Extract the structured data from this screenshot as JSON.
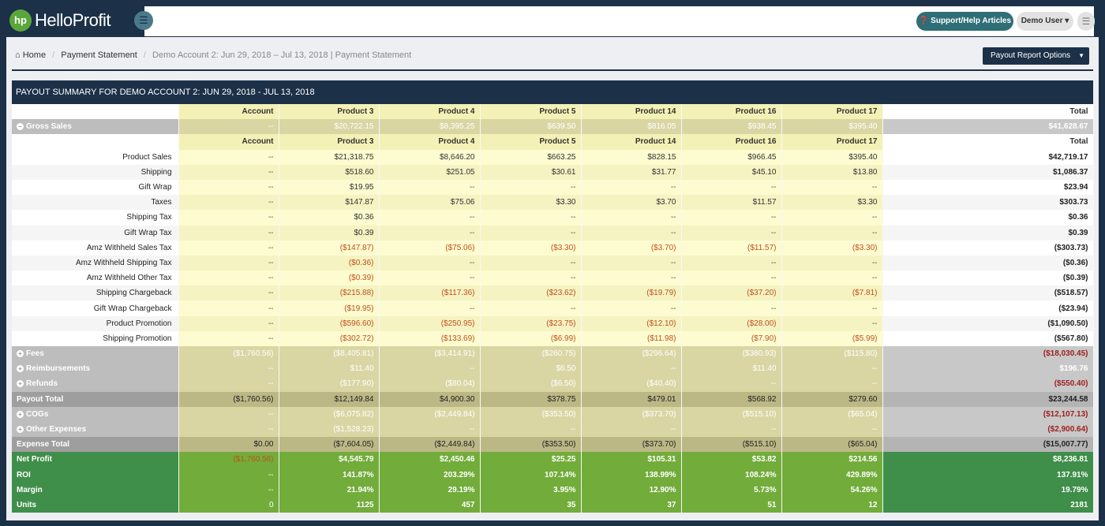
{
  "app": {
    "logo_mark": "hp",
    "logo_text": "HelloProfit"
  },
  "header": {
    "support_label": "Support/Help Articles",
    "user_label": "Demo User",
    "hamburger_glyph": "☰"
  },
  "breadcrumb": {
    "home": "Home",
    "current": "Payment Statement",
    "detail": "Demo Account 2: Jun 29, 2018 – Jul 13, 2018 | Payment Statement"
  },
  "options_button": "Payout Report Options",
  "panel_title": "PAYOUT SUMMARY FOR DEMO ACCOUNT 2: JUN 29, 2018 - JUL 13, 2018",
  "columns": [
    "Account",
    "Product 3",
    "Product 4",
    "Product 5",
    "Product 14",
    "Product 16",
    "Product 17"
  ],
  "total_label": "Total",
  "rows": [
    {
      "label": "Gross Sales",
      "kind": "gray",
      "expand": "−",
      "values": [
        "--",
        "$20,722.15",
        "$8,395.25",
        "$639.50",
        "$816.05",
        "$938.45",
        "$395.40"
      ],
      "total": "$41,628.67"
    },
    {
      "label": "",
      "kind": "subheader",
      "values": [
        "Account",
        "Product 3",
        "Product 4",
        "Product 5",
        "Product 14",
        "Product 16",
        "Product 17"
      ],
      "total": "Total"
    },
    {
      "label": "Product Sales",
      "kind": "detail",
      "values": [
        "--",
        "$21,318.75",
        "$8,646.20",
        "$663.25",
        "$828.15",
        "$966.45",
        "$395.40"
      ],
      "total": "$42,719.17"
    },
    {
      "label": "Shipping",
      "kind": "detail",
      "values": [
        "--",
        "$518.60",
        "$251.05",
        "$30.61",
        "$31.77",
        "$45.10",
        "$13.80"
      ],
      "total": "$1,086.37"
    },
    {
      "label": "Gift Wrap",
      "kind": "detail",
      "values": [
        "--",
        "$19.95",
        "--",
        "--",
        "--",
        "--",
        "--"
      ],
      "total": "$23.94"
    },
    {
      "label": "Taxes",
      "kind": "detail",
      "values": [
        "--",
        "$147.87",
        "$75.06",
        "$3.30",
        "$3.70",
        "$11.57",
        "$3.30"
      ],
      "total": "$303.73"
    },
    {
      "label": "Shipping Tax",
      "kind": "detail",
      "values": [
        "--",
        "$0.36",
        "--",
        "--",
        "--",
        "--",
        "--"
      ],
      "total": "$0.36"
    },
    {
      "label": "Gift Wrap Tax",
      "kind": "detail",
      "values": [
        "--",
        "$0.39",
        "--",
        "--",
        "--",
        "--",
        "--"
      ],
      "total": "$0.39"
    },
    {
      "label": "Amz Withheld Sales Tax",
      "kind": "detail",
      "values": [
        "--",
        "($147.87)",
        "($75.06)",
        "($3.30)",
        "($3.70)",
        "($11.57)",
        "($3.30)"
      ],
      "total": "($303.73)"
    },
    {
      "label": "Amz Withheld Shipping Tax",
      "kind": "detail",
      "values": [
        "--",
        "($0.36)",
        "--",
        "--",
        "--",
        "--",
        "--"
      ],
      "total": "($0.36)"
    },
    {
      "label": "Amz Withheld Other Tax",
      "kind": "detail",
      "values": [
        "--",
        "($0.39)",
        "--",
        "--",
        "--",
        "--",
        "--"
      ],
      "total": "($0.39)"
    },
    {
      "label": "Shipping Chargeback",
      "kind": "detail",
      "values": [
        "--",
        "($215.88)",
        "($117.36)",
        "($23.62)",
        "($19.79)",
        "($37.20)",
        "($7.81)"
      ],
      "total": "($518.57)"
    },
    {
      "label": "Gift Wrap Chargeback",
      "kind": "detail",
      "values": [
        "--",
        "($19.95)",
        "--",
        "--",
        "--",
        "--",
        "--"
      ],
      "total": "($23.94)"
    },
    {
      "label": "Product Promotion",
      "kind": "detail",
      "values": [
        "--",
        "($596.60)",
        "($250.95)",
        "($23.75)",
        "($12.10)",
        "($28.00)",
        "--"
      ],
      "total": "($1,090.50)"
    },
    {
      "label": "Shipping Promotion",
      "kind": "detail",
      "values": [
        "--",
        "($302.72)",
        "($133.69)",
        "($6.99)",
        "($11.98)",
        "($7.90)",
        "($5.99)"
      ],
      "total": "($567.80)"
    },
    {
      "label": "Fees",
      "kind": "gray",
      "expand": "+",
      "values": [
        "($1,760.56)",
        "($8,405.81)",
        "($3,414.91)",
        "($260.75)",
        "($296.64)",
        "($380.93)",
        "($115.80)"
      ],
      "total": "($18,030.45)"
    },
    {
      "label": "Reimbursements",
      "kind": "gray",
      "expand": "+",
      "values": [
        "--",
        "$11.40",
        "--",
        "$6.50",
        "--",
        "$11.40",
        "--"
      ],
      "total": "$196.76"
    },
    {
      "label": "Refunds",
      "kind": "gray",
      "expand": "+",
      "values": [
        "--",
        "($177.90)",
        "($80.04)",
        "($6.50)",
        "($40.40)",
        "--",
        "--"
      ],
      "total": "($550.40)"
    },
    {
      "label": "Payout Total",
      "kind": "sum",
      "values": [
        "($1,760.56)",
        "$12,149.84",
        "$4,900.30",
        "$378.75",
        "$479.01",
        "$568.92",
        "$279.60"
      ],
      "total": "$23,244.58"
    },
    {
      "label": "COGs",
      "kind": "gray",
      "expand": "+",
      "values": [
        "--",
        "($6,075.82)",
        "($2,449.84)",
        "($353.50)",
        "($373.70)",
        "($515.10)",
        "($65.04)"
      ],
      "total": "($12,107.13)"
    },
    {
      "label": "Other Expenses",
      "kind": "gray",
      "expand": "+",
      "values": [
        "--",
        "($1,528.23)",
        "--",
        "--",
        "--",
        "--",
        "--"
      ],
      "total": "($2,900.64)"
    },
    {
      "label": "Expense Total",
      "kind": "sum",
      "values": [
        "$0.00",
        "($7,604.05)",
        "($2,449.84)",
        "($353.50)",
        "($373.70)",
        "($515.10)",
        "($65.04)"
      ],
      "total": "($15,007.77)"
    },
    {
      "label": "Net Profit",
      "kind": "green",
      "values": [
        "($1,760.56)",
        "$4,545.79",
        "$2,450.46",
        "$25.25",
        "$105.31",
        "$53.82",
        "$214.56"
      ],
      "total": "$8,236.81"
    },
    {
      "label": "ROI",
      "kind": "green",
      "values": [
        "--",
        "141.87%",
        "203.29%",
        "107.14%",
        "138.99%",
        "108.24%",
        "429.89%"
      ],
      "total": "137.91%"
    },
    {
      "label": "Margin",
      "kind": "green",
      "values": [
        "--",
        "21.94%",
        "29.19%",
        "3.95%",
        "12.90%",
        "5.73%",
        "54.26%"
      ],
      "total": "19.79%"
    },
    {
      "label": "Units",
      "kind": "green",
      "values": [
        "0",
        "1125",
        "457",
        "35",
        "37",
        "51",
        "12"
      ],
      "total": "2181"
    }
  ],
  "colors": {
    "navy": "#1c3048",
    "brand_green": "#5aa63c",
    "support_teal": "#2f6e76",
    "negative_text": "#c0501e",
    "net_profit_green": "#72ac3a"
  }
}
